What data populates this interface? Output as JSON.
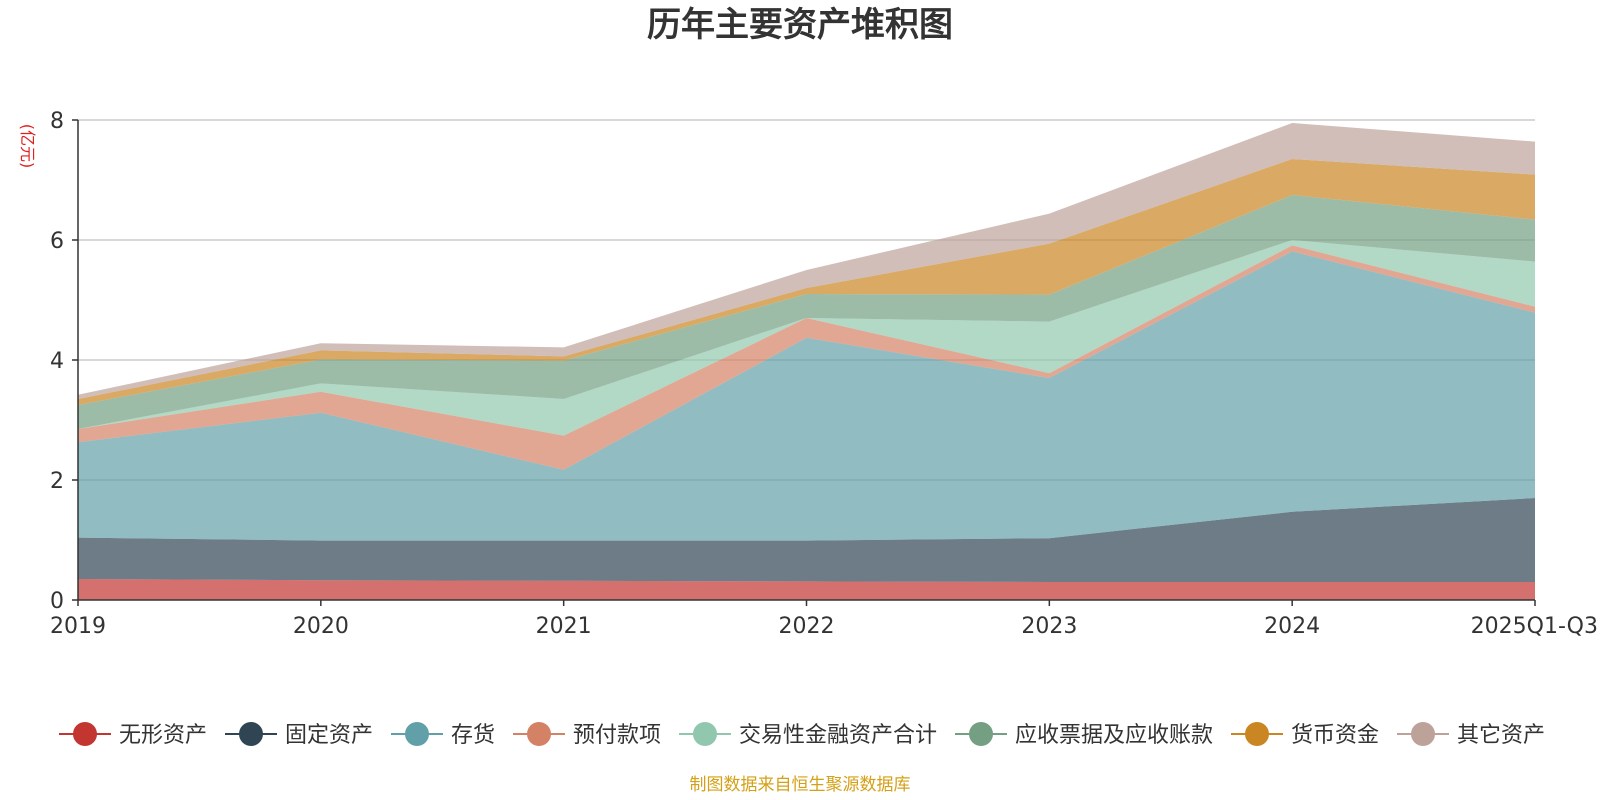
{
  "chart_data": {
    "type": "area",
    "stacked": true,
    "title": "历年主要资产堆积图",
    "unit": "(亿元)",
    "categories": [
      "2019",
      "2020",
      "2021",
      "2022",
      "2023",
      "2024",
      "2025Q1-Q3"
    ],
    "ylim": [
      0,
      8
    ],
    "yticks": [
      0,
      2,
      4,
      6,
      8
    ],
    "grid": true,
    "legend_position": "bottom",
    "series": [
      {
        "name": "无形资产",
        "color": "#c23531",
        "values": [
          0.35,
          0.33,
          0.32,
          0.31,
          0.3,
          0.3,
          0.3
        ]
      },
      {
        "name": "固定资产",
        "color": "#2f4554",
        "values": [
          0.69,
          0.66,
          0.67,
          0.68,
          0.73,
          1.17,
          1.4
        ]
      },
      {
        "name": "存货",
        "color": "#61a0a8",
        "values": [
          1.59,
          2.13,
          1.18,
          3.38,
          2.67,
          4.34,
          3.09
        ]
      },
      {
        "name": "预付款项",
        "color": "#d48265",
        "values": [
          0.22,
          0.35,
          0.57,
          0.33,
          0.08,
          0.1,
          0.1
        ]
      },
      {
        "name": "交易性金融资产合计",
        "color": "#91c7ae",
        "values": [
          0.0,
          0.14,
          0.61,
          0.0,
          0.86,
          0.09,
          0.75
        ]
      },
      {
        "name": "应收票据及应收账款",
        "color": "#749f83",
        "values": [
          0.4,
          0.4,
          0.64,
          0.4,
          0.45,
          0.75,
          0.7
        ]
      },
      {
        "name": "货币资金",
        "color": "#ca8622",
        "values": [
          0.1,
          0.15,
          0.07,
          0.1,
          0.85,
          0.6,
          0.75
        ]
      },
      {
        "name": "其它资产",
        "color": "#bda29a",
        "values": [
          0.07,
          0.12,
          0.15,
          0.3,
          0.5,
          0.6,
          0.55
        ]
      }
    ]
  },
  "footer": {
    "source": "制图数据来自恒生聚源数据库"
  }
}
